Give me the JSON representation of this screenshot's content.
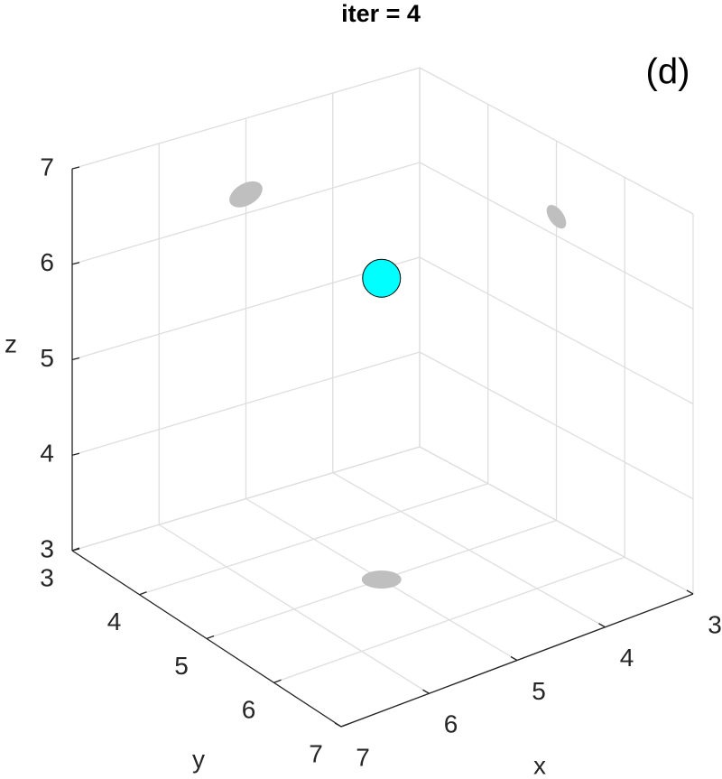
{
  "chart_data": {
    "type": "scatter3d",
    "title": "iter = 4",
    "annotation": "(d)",
    "x_label": "x",
    "y_label": "y",
    "z_label": "z",
    "x": [
      5
    ],
    "y": [
      5
    ],
    "z": [
      6.2
    ],
    "color": "#00ffff",
    "shadow_color": "#bfbfbf",
    "xlim": [
      3,
      7
    ],
    "ylim": [
      3,
      7
    ],
    "zlim": [
      3,
      7
    ],
    "xticks": [
      3,
      4,
      5,
      6,
      7
    ],
    "yticks": [
      3,
      4,
      5,
      6,
      7
    ],
    "zticks": [
      3,
      4,
      5,
      6,
      7
    ],
    "grid": true
  }
}
